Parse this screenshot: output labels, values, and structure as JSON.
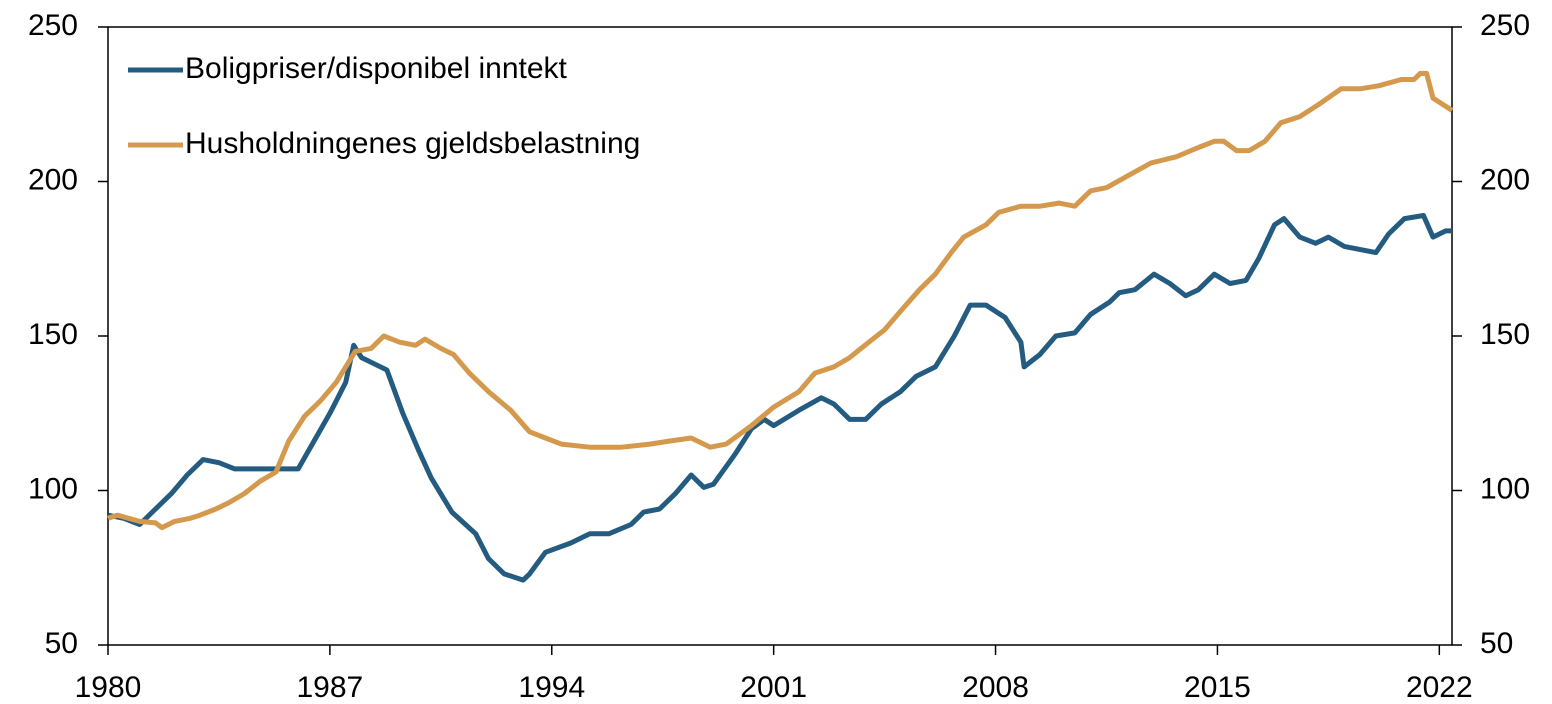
{
  "chart_data": {
    "type": "line",
    "xlim": [
      1980,
      2022.4
    ],
    "xticks": [
      1980,
      1987,
      1994,
      2001,
      2008,
      2015,
      2022
    ],
    "ylim": [
      50,
      250
    ],
    "yticks": [
      50,
      100,
      150,
      200,
      250
    ],
    "y2lim": [
      50,
      250
    ],
    "y2ticks": [
      50,
      100,
      150,
      200,
      250
    ],
    "legend": "upper left",
    "series": [
      {
        "name": "Boligpriser/disponibel inntekt",
        "color": "#245b80",
        "x": [
          1980,
          1980.5,
          1981,
          1981.5,
          1982,
          1982.5,
          1983,
          1983.5,
          1984,
          1984.5,
          1985,
          1985.5,
          1986,
          1986.5,
          1987,
          1987.5,
          1987.75,
          1988,
          1988.8,
          1989.3,
          1989.8,
          1990.2,
          1990.85,
          1991.6,
          1992,
          1992.5,
          1993.1,
          1993.3,
          1993.8,
          1994.6,
          1995.2,
          1995.8,
          1996.5,
          1996.9,
          1997.4,
          1997.9,
          1998.4,
          1998.8,
          1999.1,
          1999.8,
          2000.3,
          2000.7,
          2001,
          2001.8,
          2002.5,
          2002.9,
          2003.4,
          2003.9,
          2004.4,
          2005,
          2005.5,
          2006.1,
          2006.7,
          2007.2,
          2007.7,
          2008.3,
          2008.8,
          2008.9,
          2009.4,
          2009.9,
          2010.5,
          2011,
          2011.6,
          2011.9,
          2012.4,
          2013,
          2013.5,
          2014,
          2014.4,
          2014.9,
          2015.4,
          2015.9,
          2016.3,
          2016.8,
          2017.1,
          2017.6,
          2018.1,
          2018.5,
          2019,
          2020,
          2020.4,
          2020.9,
          2021.5,
          2021.8,
          2022.2,
          2022.4
        ],
        "values": [
          92,
          91,
          89,
          94,
          99,
          105,
          110,
          109,
          107,
          107,
          107,
          107,
          107,
          116,
          125,
          135,
          147,
          143,
          139,
          125,
          113,
          104,
          93,
          86,
          78,
          73,
          71,
          73,
          80,
          83,
          86,
          86,
          89,
          93,
          94,
          99,
          105,
          101,
          102,
          112,
          120,
          123,
          121,
          126,
          130,
          128,
          123,
          123,
          128,
          132,
          137,
          140,
          150,
          160,
          160,
          156,
          148,
          140,
          144,
          150,
          151,
          157,
          161,
          164,
          165,
          170,
          167,
          163,
          165,
          170,
          167,
          168,
          175,
          186,
          188,
          182,
          180,
          182,
          179,
          177,
          183,
          188,
          189,
          182,
          184,
          184
        ]
      },
      {
        "name": "Husholdningenes gjeldsbelastning",
        "color": "#d4994c",
        "x": [
          1980,
          1980.3,
          1981,
          1981.5,
          1981.7,
          1982.1,
          1982.6,
          1982.9,
          1983.4,
          1983.8,
          1984.3,
          1984.8,
          1985.3,
          1985.7,
          1986.2,
          1986.7,
          1987.2,
          1987.5,
          1987.8,
          1988.3,
          1988.7,
          1989.2,
          1989.7,
          1990,
          1990.5,
          1990.9,
          1991.4,
          1992,
          1992.7,
          1993.3,
          1993.8,
          1994.3,
          1995.2,
          1996.2,
          1997.1,
          1997.7,
          1998.4,
          1999,
          1999.5,
          2000.3,
          2001,
          2001.8,
          2002.3,
          2002.9,
          2003.4,
          2004,
          2004.5,
          2005,
          2005.6,
          2006.1,
          2006.6,
          2007,
          2007.7,
          2008.1,
          2008.8,
          2009.4,
          2010,
          2010.5,
          2011,
          2011.5,
          2012.2,
          2012.9,
          2013.7,
          2014.4,
          2014.9,
          2015.2,
          2015.6,
          2016,
          2016.5,
          2017,
          2017.6,
          2018.2,
          2018.9,
          2019.5,
          2020.1,
          2020.8,
          2021.2,
          2021.4,
          2021.6,
          2021.8,
          2022.4
        ],
        "values": [
          91,
          92,
          90,
          89.5,
          88,
          90,
          91,
          92,
          94,
          96,
          99,
          103,
          106,
          116,
          124,
          129,
          135,
          140,
          145,
          146,
          150,
          148,
          147,
          149,
          146,
          144,
          138,
          132,
          126,
          119,
          117,
          115,
          114,
          114,
          115,
          116,
          117,
          114,
          115,
          121,
          127,
          132,
          138,
          140,
          143,
          148,
          152,
          158,
          165,
          170,
          177,
          182,
          186,
          190,
          192,
          192,
          193,
          192,
          197,
          198,
          202,
          206,
          208,
          211,
          213,
          213,
          210,
          210,
          213,
          219,
          221,
          225,
          230,
          230,
          231,
          233,
          233,
          235,
          235,
          227,
          223
        ]
      }
    ]
  }
}
